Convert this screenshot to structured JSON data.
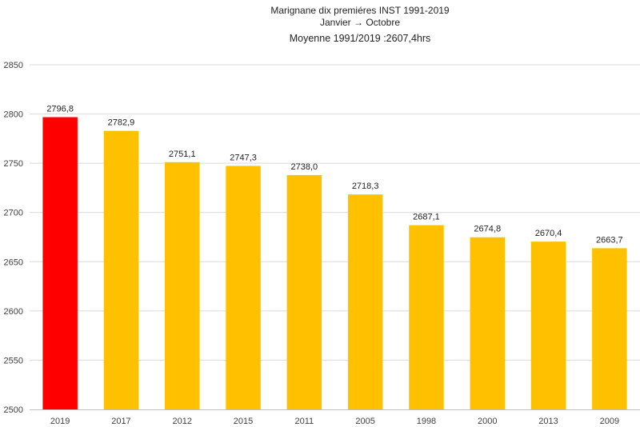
{
  "chart_data": {
    "type": "bar",
    "title": "Marignane dix premiéres   INST 1991-2019",
    "subtitle": "Janvier → Octobre",
    "note": "Moyenne 1991/2019 :2607,4hrs",
    "categories": [
      "2019",
      "2017",
      "2012",
      "2015",
      "2011",
      "2005",
      "1998",
      "2000",
      "2013",
      "2009"
    ],
    "values": [
      2796.8,
      2782.9,
      2751.1,
      2747.3,
      2738.0,
      2718.3,
      2687.1,
      2674.8,
      2670.4,
      2663.7
    ],
    "value_labels": [
      "2796,8",
      "2782,9",
      "2751,1",
      "2747,3",
      "2738,0",
      "2718,3",
      "2687,1",
      "2674,8",
      "2670,4",
      "2663,7"
    ],
    "ylim": [
      2500,
      2850
    ],
    "yticks": [
      2500,
      2550,
      2600,
      2650,
      2700,
      2750,
      2800,
      2850
    ],
    "grid": true,
    "legend": "none",
    "colors": {
      "highlight": "#ff0000",
      "default": "#ffc000",
      "grid": "#d9d9d9"
    }
  }
}
